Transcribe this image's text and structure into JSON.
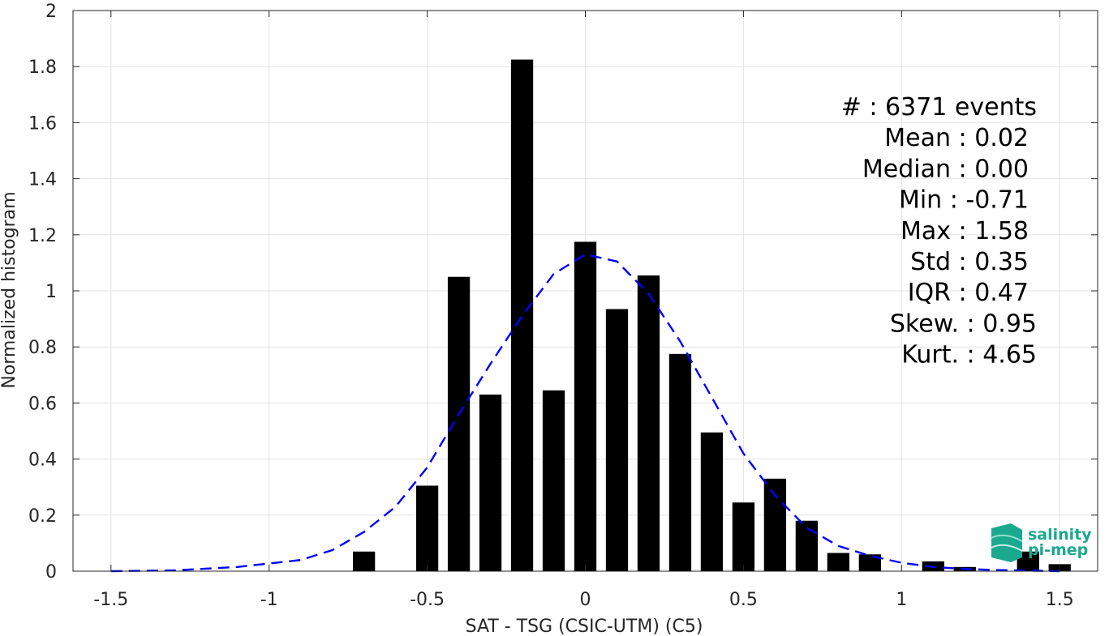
{
  "chart_data": {
    "type": "bar",
    "xlabel": "SAT - TSG (CSIC-UTM) (C5)",
    "ylabel": "Normalized histogram",
    "xlim": [
      -1.62,
      1.62
    ],
    "ylim": [
      0,
      2
    ],
    "xticks": [
      -1.5,
      -1,
      -0.5,
      0,
      0.5,
      1,
      1.5
    ],
    "xtick_labels": [
      "-1.5",
      "-1",
      "-0.5",
      "0",
      "0.5",
      "1",
      "1.5"
    ],
    "yticks": [
      0,
      0.2,
      0.4,
      0.6,
      0.8,
      1,
      1.2,
      1.4,
      1.6,
      1.8,
      2
    ],
    "ytick_labels": [
      "0",
      "0.2",
      "0.4",
      "0.6",
      "0.8",
      "1",
      "1.2",
      "1.4",
      "1.6",
      "1.8",
      "2"
    ],
    "grid": true,
    "bar_width": 0.07,
    "bars": {
      "x": [
        -0.7,
        -0.5,
        -0.4,
        -0.3,
        -0.2,
        -0.1,
        0.0,
        0.1,
        0.2,
        0.3,
        0.4,
        0.5,
        0.6,
        0.7,
        0.8,
        0.9,
        1.1,
        1.2,
        1.4,
        1.5
      ],
      "values": [
        0.07,
        0.305,
        1.05,
        0.63,
        1.825,
        0.645,
        1.175,
        0.935,
        1.055,
        0.775,
        0.495,
        0.245,
        0.33,
        0.18,
        0.065,
        0.06,
        0.035,
        0.015,
        0.07,
        0.025
      ],
      "color": "#000000"
    },
    "fit_curve": {
      "style": "dashed",
      "color": "#0000ff",
      "x": [
        -1.5,
        -1.3,
        -1.1,
        -0.9,
        -0.8,
        -0.7,
        -0.6,
        -0.5,
        -0.4,
        -0.3,
        -0.2,
        -0.1,
        0.0,
        0.1,
        0.2,
        0.3,
        0.4,
        0.5,
        0.6,
        0.7,
        0.8,
        0.9,
        1.0,
        1.1,
        1.2,
        1.3,
        1.4,
        1.5
      ],
      "y": [
        0.0,
        0.003,
        0.015,
        0.04,
        0.075,
        0.14,
        0.23,
        0.37,
        0.56,
        0.74,
        0.91,
        1.06,
        1.13,
        1.105,
        0.99,
        0.82,
        0.62,
        0.42,
        0.27,
        0.155,
        0.09,
        0.055,
        0.03,
        0.015,
        0.008,
        0.004,
        0.002,
        0.0
      ]
    },
    "annotation": [
      "#  : 6371 events",
      "Mean : 0.02",
      "Median : 0.00",
      "Min : -0.71",
      "Max : 1.58",
      "Std : 0.35",
      "IQR : 0.47",
      "Skew. : 0.95",
      "Kurt. : 4.65"
    ]
  },
  "logo": {
    "line1": "salinity",
    "line2": "pi-mep",
    "color": "#1aa88e"
  }
}
